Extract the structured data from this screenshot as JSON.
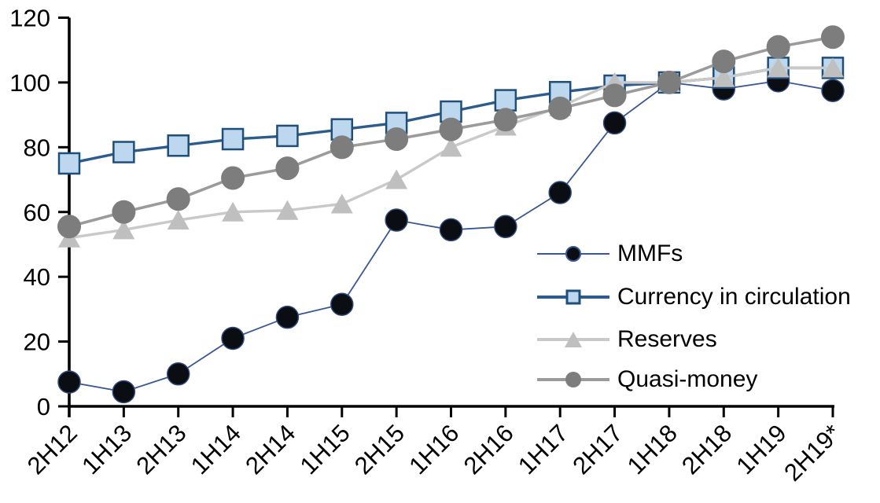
{
  "chart_data": {
    "type": "line",
    "title": "",
    "categories": [
      "2H12",
      "1H13",
      "2H13",
      "1H14",
      "2H14",
      "1H15",
      "2H15",
      "1H16",
      "2H16",
      "1H17",
      "2H17",
      "1H18",
      "2H18",
      "1H19",
      "2H19*"
    ],
    "series": [
      {
        "name": "MMFs",
        "marker": "circle",
        "line_color": "#3a5795",
        "line_width": 1.8,
        "marker_fill": "#0a0d12",
        "marker_stroke": "#30487c",
        "values": [
          7.5,
          4.5,
          10,
          21,
          27.5,
          31.5,
          57.5,
          54.5,
          55.5,
          66,
          87.5,
          100,
          98,
          100.5,
          97.5
        ]
      },
      {
        "name": "Currency in circulation",
        "marker": "square",
        "line_color": "#2b5c8c",
        "line_width": 3.4,
        "marker_fill": "#bdd7ee",
        "marker_stroke": "#1f4e79",
        "values": [
          75,
          78.5,
          80.5,
          82.5,
          83.5,
          85.5,
          87.5,
          91,
          94.5,
          97,
          99,
          100,
          101.5,
          104.5,
          104.5
        ]
      },
      {
        "name": "Reserves",
        "marker": "triangle",
        "line_color": "#c9c9c9",
        "line_width": 3.4,
        "marker_fill": "#bfbfbf",
        "marker_stroke": "",
        "values": [
          52,
          54.5,
          57.5,
          60,
          60.5,
          62.5,
          70,
          80,
          86.5,
          92.5,
          100,
          100,
          101.5,
          104.5,
          104.5
        ]
      },
      {
        "name": "Quasi-money",
        "marker": "circle",
        "line_color": "#9b9b9b",
        "line_width": 3.6,
        "marker_fill": "#7d7d7d",
        "marker_stroke": "",
        "values": [
          55.5,
          60,
          64,
          70.5,
          73.5,
          80,
          82.5,
          85.5,
          88.5,
          92,
          96,
          100,
          106.5,
          111,
          114
        ]
      }
    ],
    "y_ticks": [
      0,
      20,
      40,
      60,
      80,
      100,
      120
    ],
    "ylim": [
      0,
      120
    ],
    "xlabel": "",
    "ylabel": "",
    "grid": false,
    "legend_position": "inside-right",
    "axis_color": "#000000"
  }
}
